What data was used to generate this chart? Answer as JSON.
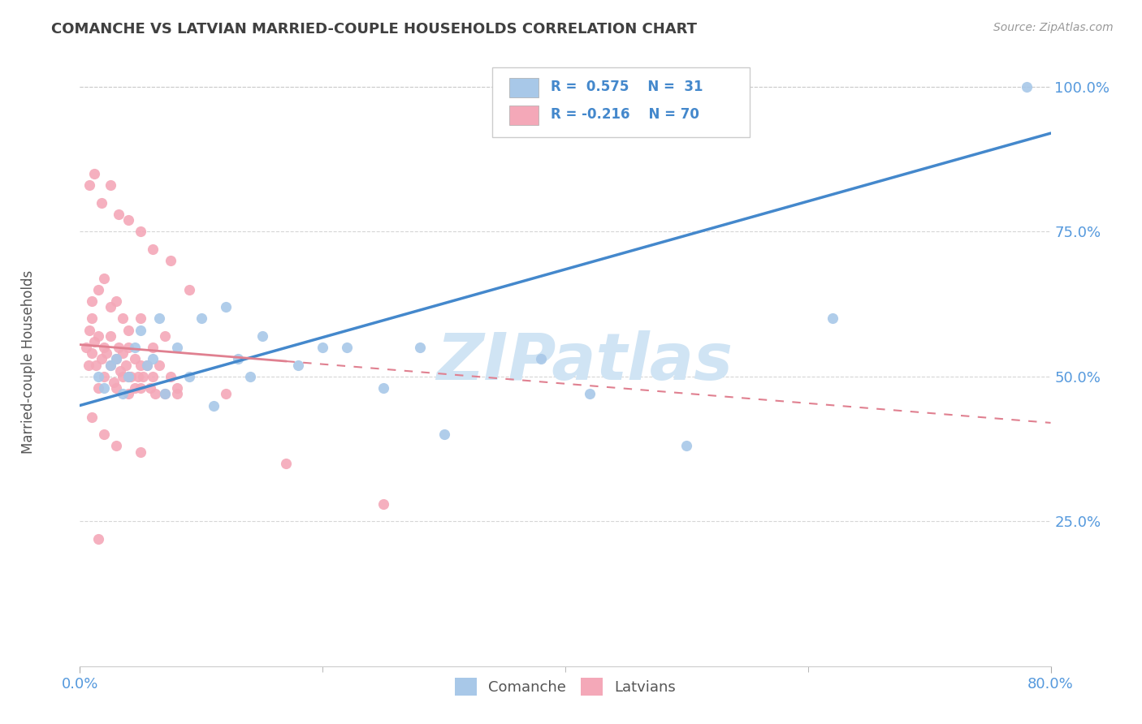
{
  "title": "COMANCHE VS LATVIAN MARRIED-COUPLE HOUSEHOLDS CORRELATION CHART",
  "source": "Source: ZipAtlas.com",
  "ylabel": "Married-couple Households",
  "xmin": 0.0,
  "xmax": 0.8,
  "ymin": 0.0,
  "ymax": 1.05,
  "comanche_color": "#A8C8E8",
  "latvian_color": "#F4A8B8",
  "trend_comanche_color": "#4488CC",
  "trend_latvian_color": "#E08090",
  "watermark_color": "#D0E4F4",
  "background_color": "#ffffff",
  "title_color": "#404040",
  "axis_tick_color": "#5599DD",
  "grid_color": "#CCCCCC",
  "comanche_x": [
    0.015,
    0.02,
    0.025,
    0.03,
    0.035,
    0.04,
    0.045,
    0.05,
    0.055,
    0.06,
    0.065,
    0.07,
    0.08,
    0.09,
    0.1,
    0.11,
    0.12,
    0.13,
    0.14,
    0.15,
    0.18,
    0.2,
    0.22,
    0.25,
    0.28,
    0.3,
    0.38,
    0.42,
    0.5,
    0.62,
    0.78
  ],
  "comanche_y": [
    0.5,
    0.48,
    0.52,
    0.53,
    0.47,
    0.5,
    0.55,
    0.58,
    0.52,
    0.53,
    0.6,
    0.47,
    0.55,
    0.5,
    0.6,
    0.45,
    0.62,
    0.53,
    0.5,
    0.57,
    0.52,
    0.55,
    0.55,
    0.48,
    0.55,
    0.4,
    0.53,
    0.47,
    0.38,
    0.6,
    1.0
  ],
  "latvian_x": [
    0.005,
    0.007,
    0.008,
    0.01,
    0.01,
    0.012,
    0.013,
    0.015,
    0.015,
    0.018,
    0.02,
    0.02,
    0.022,
    0.025,
    0.025,
    0.028,
    0.03,
    0.03,
    0.032,
    0.033,
    0.035,
    0.035,
    0.038,
    0.04,
    0.04,
    0.042,
    0.045,
    0.045,
    0.048,
    0.05,
    0.05,
    0.052,
    0.055,
    0.058,
    0.06,
    0.062,
    0.065,
    0.07,
    0.075,
    0.08,
    0.01,
    0.015,
    0.02,
    0.025,
    0.03,
    0.035,
    0.04,
    0.05,
    0.06,
    0.07,
    0.008,
    0.012,
    0.018,
    0.025,
    0.032,
    0.04,
    0.05,
    0.06,
    0.075,
    0.09,
    0.01,
    0.02,
    0.03,
    0.05,
    0.08,
    0.12,
    0.015,
    0.04,
    0.17,
    0.25
  ],
  "latvian_y": [
    0.55,
    0.52,
    0.58,
    0.54,
    0.6,
    0.56,
    0.52,
    0.57,
    0.48,
    0.53,
    0.55,
    0.5,
    0.54,
    0.52,
    0.57,
    0.49,
    0.53,
    0.48,
    0.55,
    0.51,
    0.5,
    0.54,
    0.52,
    0.5,
    0.55,
    0.5,
    0.53,
    0.48,
    0.5,
    0.52,
    0.48,
    0.5,
    0.52,
    0.48,
    0.5,
    0.47,
    0.52,
    0.47,
    0.5,
    0.47,
    0.63,
    0.65,
    0.67,
    0.62,
    0.63,
    0.6,
    0.58,
    0.6,
    0.55,
    0.57,
    0.83,
    0.85,
    0.8,
    0.83,
    0.78,
    0.77,
    0.75,
    0.72,
    0.7,
    0.65,
    0.43,
    0.4,
    0.38,
    0.37,
    0.48,
    0.47,
    0.22,
    0.47,
    0.35,
    0.28
  ],
  "trend_c_x0": 0.0,
  "trend_c_y0": 0.45,
  "trend_c_x1": 0.8,
  "trend_c_y1": 0.92,
  "trend_l_x0": 0.0,
  "trend_l_y0": 0.555,
  "trend_l_x1": 0.8,
  "trend_l_y1": 0.42
}
